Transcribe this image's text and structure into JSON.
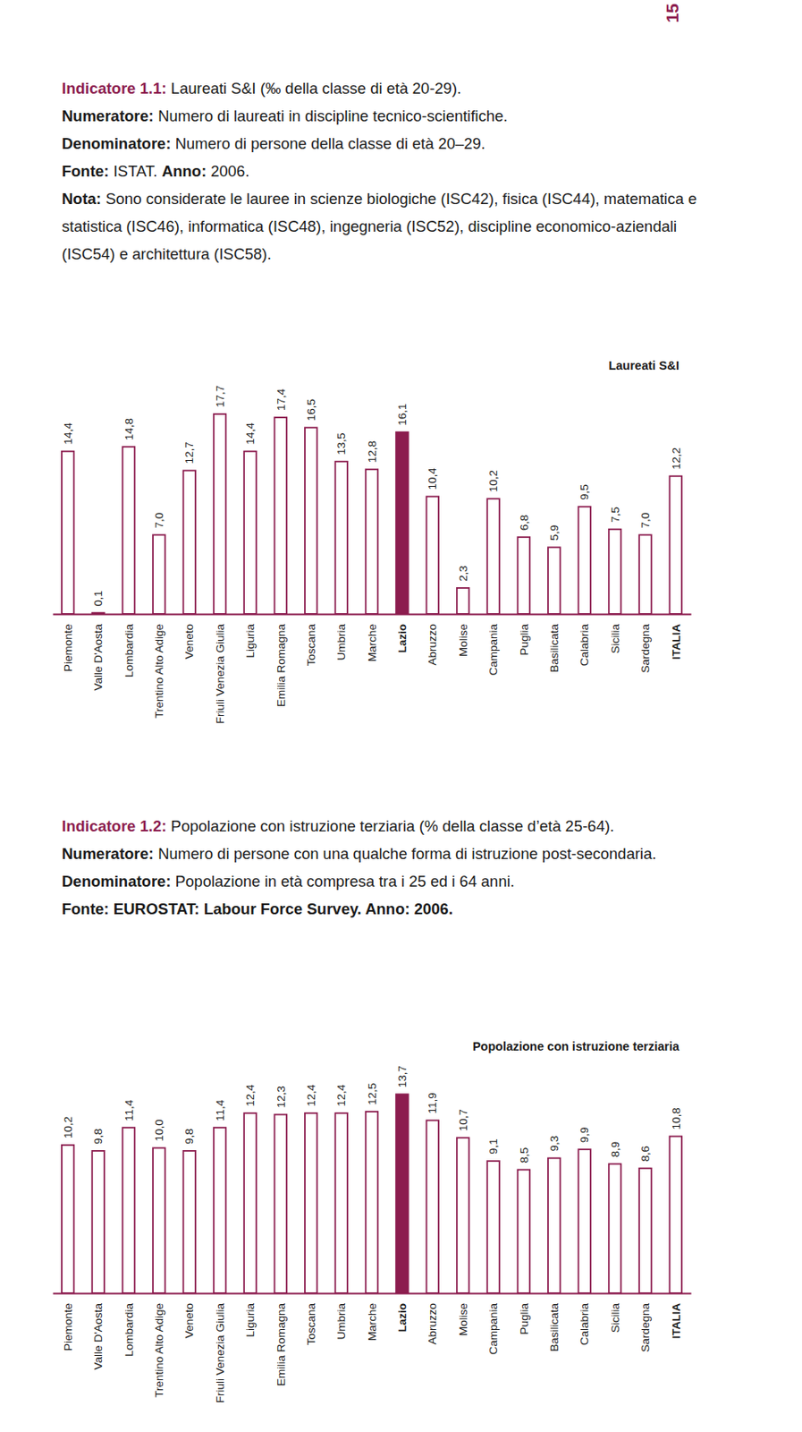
{
  "page_number": "15",
  "chart_data": [
    {
      "type": "bar",
      "title": "Laureati S&I",
      "annotations": [
        [
          "Indicatore 1.1:",
          "Laureati S&I (‰ della classe di età 20-29)."
        ],
        [
          "Numeratore:",
          "Numero di laureati in discipline tecnico-scientifiche."
        ],
        [
          "Denominatore:",
          "Numero di persone della classe di età 20–29."
        ],
        [
          "Fonte:",
          "ISTAT.",
          "Anno:",
          "2006."
        ],
        [
          "Nota:",
          "Sono considerate le lauree in scienze biologiche (ISC42), fisica (ISC44), matematica e statistica (ISC46), informatica (ISC48), ingegneria (ISC52), discipline economico-aziendali (ISC54) e architettura (ISC58)."
        ]
      ],
      "categories": [
        "Piemonte",
        "Valle D'Aosta",
        "Lombardia",
        "Trentino Alto Adige",
        "Veneto",
        "Friuli Venezia Giulia",
        "Liguria",
        "Emilia Romagna",
        "Toscana",
        "Umbria",
        "Marche",
        "Lazio",
        "Abruzzo",
        "Molise",
        "Campania",
        "Puglia",
        "Basilicata",
        "Calabria",
        "Sicilia",
        "Sardegna",
        "ITALIA"
      ],
      "values": [
        14.4,
        0.1,
        14.8,
        7.0,
        12.7,
        17.7,
        14.4,
        17.4,
        16.5,
        13.5,
        12.8,
        16.1,
        10.4,
        2.3,
        10.2,
        6.8,
        5.9,
        9.5,
        7.5,
        7.0,
        12.2
      ],
      "value_labels": [
        "14,4",
        "0,1",
        "14,8",
        "7,0",
        "12,7",
        "17,7",
        "14,4",
        "17,4",
        "16,5",
        "13,5",
        "12,8",
        "16,1",
        "10,4",
        "2,3",
        "10,2",
        "6,8",
        "5,9",
        "9,5",
        "7,5",
        "7,0",
        "12,2"
      ],
      "colors": [
        "#ffffff",
        "#ffffff",
        "#ffffff",
        "#ffffff",
        "#ffffff",
        "#ffffff",
        "#ffffff",
        "#ffffff",
        "#ffffff",
        "#ffffff",
        "#ffffff",
        "#8c1d4f",
        "#ffffff",
        "#ffffff",
        "#ffffff",
        "#ffffff",
        "#ffffff",
        "#ffffff",
        "#ffffff",
        "#ffffff",
        "#ffffff"
      ],
      "ylim": [
        0,
        18
      ],
      "data_labels": true,
      "tick_labels": "x"
    },
    {
      "type": "bar",
      "title": "Popolazione con istruzione terziaria",
      "annotations": [
        [
          "Indicatore 1.2:",
          "Popolazione con istruzione terziaria (% della classe d’età 25-64)."
        ],
        [
          "Numeratore:",
          "Numero di persone con una qualche forma di istruzione post-secondaria."
        ],
        [
          "Denominatore:",
          "Popolazione in età compresa tra i 25 ed i 64 anni."
        ],
        [
          "Fonte: EUROSTAT: Labour Force Survey. Anno: 2006."
        ]
      ],
      "categories": [
        "Piemonte",
        "Valle D'Aosta",
        "Lombardia",
        "Trentino Alto Adige",
        "Veneto",
        "Friuli Venezia Giulia",
        "Liguria",
        "Emilia Romagna",
        "Toscana",
        "Umbria",
        "Marche",
        "Lazio",
        "Abruzzo",
        "Molise",
        "Campania",
        "Puglia",
        "Basilicata",
        "Calabria",
        "Sicilia",
        "Sardegna",
        "ITALIA"
      ],
      "values": [
        10.2,
        9.8,
        11.4,
        10.0,
        9.8,
        11.4,
        12.4,
        12.3,
        12.4,
        12.4,
        12.5,
        13.7,
        11.9,
        10.7,
        9.1,
        8.5,
        9.3,
        9.9,
        8.9,
        8.6,
        10.8
      ],
      "value_labels": [
        "10,2",
        "9,8",
        "11,4",
        "10,0",
        "9,8",
        "11,4",
        "12,4",
        "12,3",
        "12,4",
        "12,4",
        "12,5",
        "13,7",
        "11,9",
        "10,7",
        "9,1",
        "8,5",
        "9,3",
        "9,9",
        "8,9",
        "8,6",
        "10,8"
      ],
      "colors": [
        "#ffffff",
        "#ffffff",
        "#ffffff",
        "#ffffff",
        "#ffffff",
        "#ffffff",
        "#ffffff",
        "#ffffff",
        "#ffffff",
        "#ffffff",
        "#ffffff",
        "#8c1d4f",
        "#ffffff",
        "#ffffff",
        "#ffffff",
        "#ffffff",
        "#ffffff",
        "#ffffff",
        "#ffffff",
        "#ffffff",
        "#ffffff"
      ],
      "ylim": [
        0,
        14
      ],
      "data_labels": true,
      "tick_labels": "x"
    }
  ]
}
